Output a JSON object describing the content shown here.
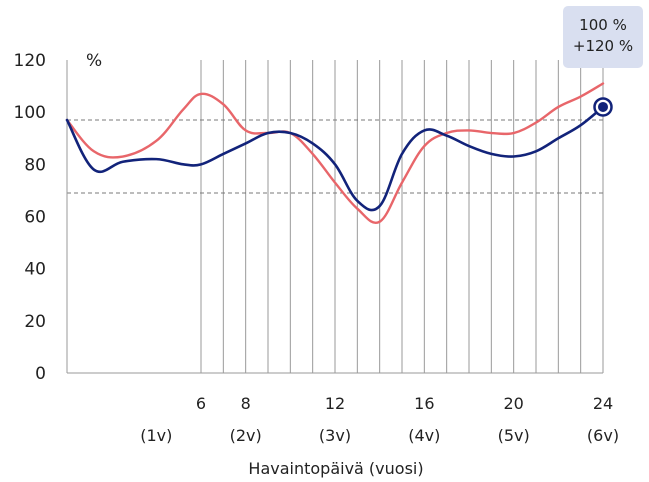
{
  "chart_data": {
    "type": "line",
    "ylabel": "%",
    "xlabel": "Havaintopäivä (vuosi)",
    "ylim": [
      0,
      120
    ],
    "yticks": [
      0,
      20,
      40,
      60,
      80,
      100,
      120
    ],
    "xlim": [
      0,
      24
    ],
    "xtick_values": [
      6,
      8,
      12,
      16,
      20,
      24
    ],
    "xtick_labels": [
      "6",
      "8",
      "12",
      "16",
      "20",
      "24"
    ],
    "xsub_values": [
      4,
      8,
      12,
      16,
      20,
      24
    ],
    "xsub_labels": [
      "(1v)",
      "(2v)",
      "(3v)",
      "(4v)",
      "(5v)",
      "(6v)"
    ],
    "vertical_gridlines": [
      6,
      7,
      8,
      9,
      10,
      11,
      12,
      13,
      14,
      15,
      16,
      17,
      18,
      19,
      20,
      21,
      22,
      23,
      24
    ],
    "reference_lines": [
      97,
      69
    ],
    "series": [
      {
        "color": "#e8666a",
        "x": [
          0,
          1.2,
          2.5,
          4,
          5.2,
          6,
          7,
          8,
          9,
          10,
          11,
          12,
          13,
          14,
          15,
          16,
          17,
          18,
          19,
          20,
          21,
          22,
          23,
          24
        ],
        "values": [
          97,
          85,
          83,
          89,
          101,
          107,
          103,
          93,
          92,
          92,
          84,
          73,
          63,
          58,
          73,
          87,
          92,
          93,
          92,
          92,
          96,
          102,
          106,
          111
        ]
      },
      {
        "color": "#12237a",
        "x": [
          0,
          1.2,
          2.5,
          4,
          5.2,
          6,
          7,
          8,
          9,
          10,
          11,
          12,
          13,
          14,
          15,
          16,
          17,
          18,
          19,
          20,
          21,
          22,
          23,
          24
        ],
        "values": [
          97,
          78,
          81,
          82,
          80,
          80,
          84,
          88,
          92,
          92,
          88,
          80,
          66,
          64,
          84,
          93,
          91,
          87,
          84,
          83,
          85,
          90,
          95,
          102
        ]
      }
    ],
    "marker": {
      "series": 1,
      "x": 24,
      "y": 102
    },
    "annotation": [
      "100 %",
      "+120 %"
    ]
  }
}
